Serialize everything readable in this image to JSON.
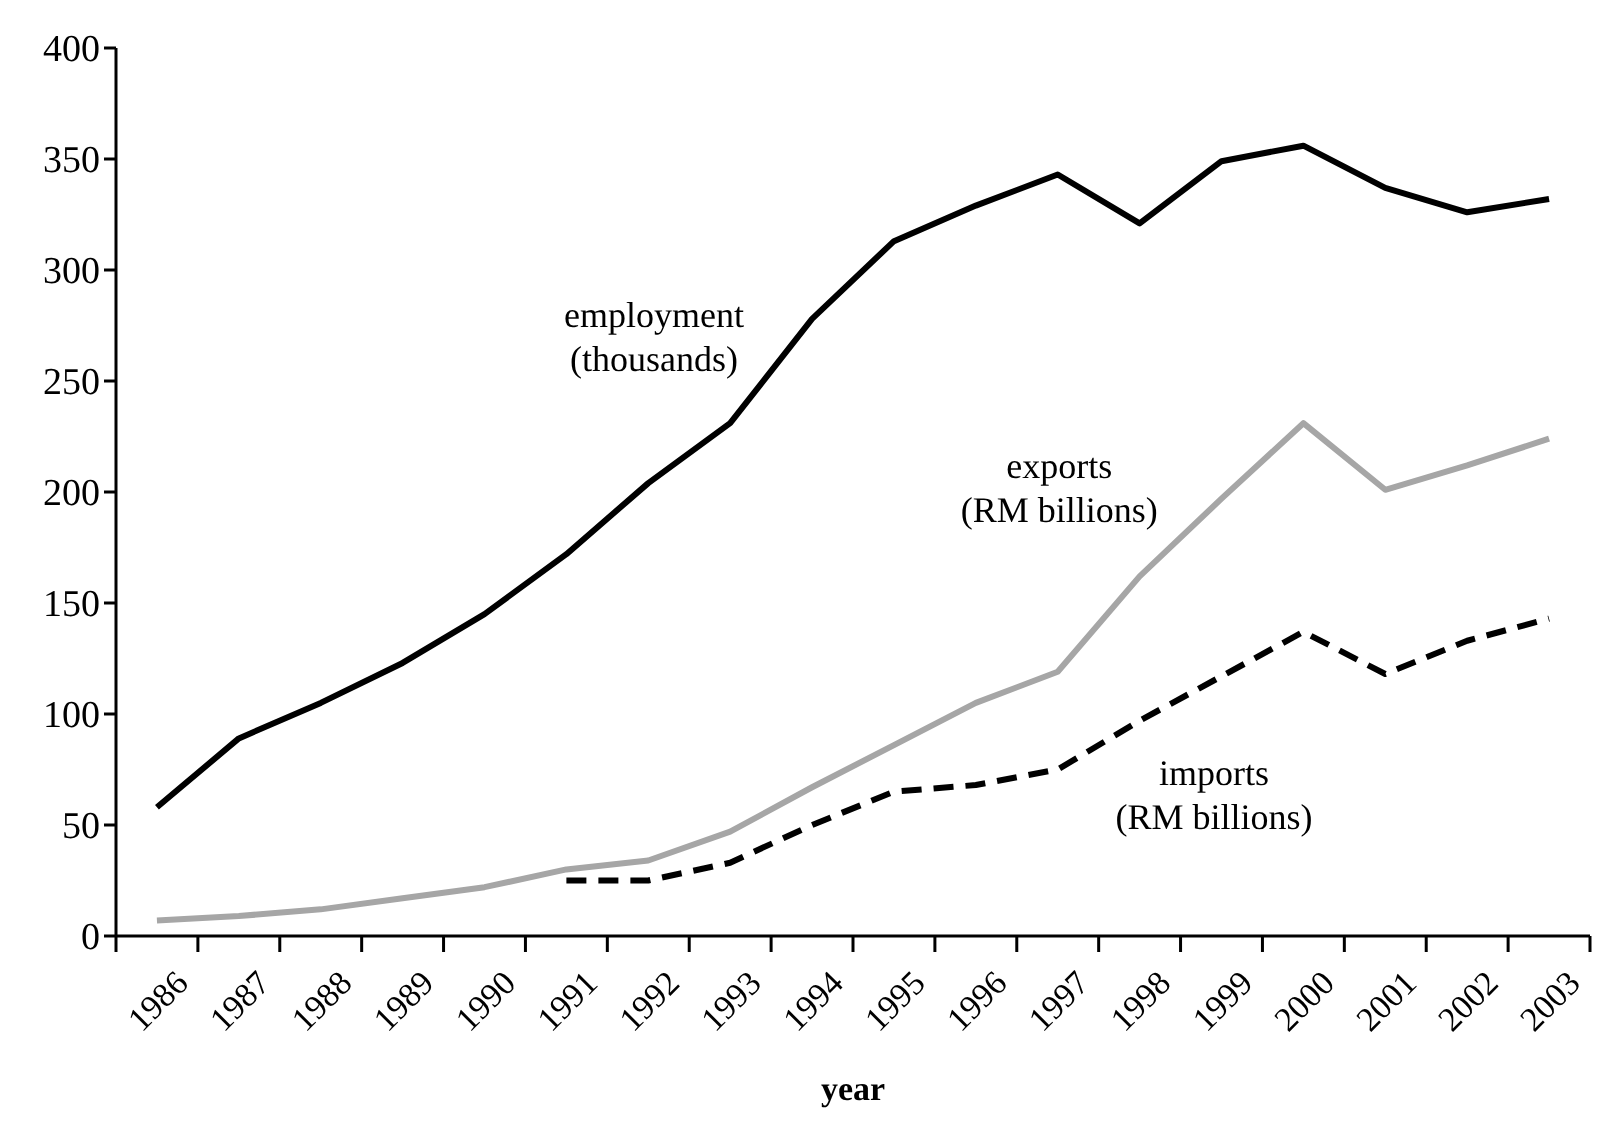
{
  "chart_data": {
    "type": "line",
    "xlabel": "year",
    "categories": [
      "1986",
      "1987",
      "1988",
      "1989",
      "1990",
      "1991",
      "1992",
      "1993",
      "1994",
      "1995",
      "1996",
      "1997",
      "1998",
      "1999",
      "2000",
      "2001",
      "2002",
      "2003"
    ],
    "series": [
      {
        "color": "#000000",
        "line_style": "solid",
        "values": [
          58,
          89,
          105,
          123,
          145,
          172,
          204,
          231,
          278,
          313,
          329,
          343,
          321,
          349,
          356,
          337,
          326,
          332
        ]
      },
      {
        "color": "#a6a6a6",
        "line_style": "solid",
        "values": [
          7,
          9,
          12,
          17,
          22,
          30,
          34,
          47,
          67,
          86,
          105,
          119,
          162,
          197,
          231,
          201,
          212,
          224
        ]
      },
      {
        "color": "#000000",
        "line_style": "dashed",
        "values": [
          null,
          null,
          null,
          null,
          null,
          25,
          25,
          33,
          50,
          65,
          68,
          75,
          97,
          117,
          137,
          118,
          133,
          143
        ]
      }
    ],
    "ylim": [
      0,
      400
    ],
    "yticks": [
      0,
      50,
      100,
      150,
      200,
      250,
      300,
      350,
      400
    ],
    "marker": "none",
    "legend": false,
    "grid": false,
    "annotations": [
      "employment\n(thousands)",
      "exports\n(RM billions)",
      "imports\n(RM billions)"
    ]
  }
}
